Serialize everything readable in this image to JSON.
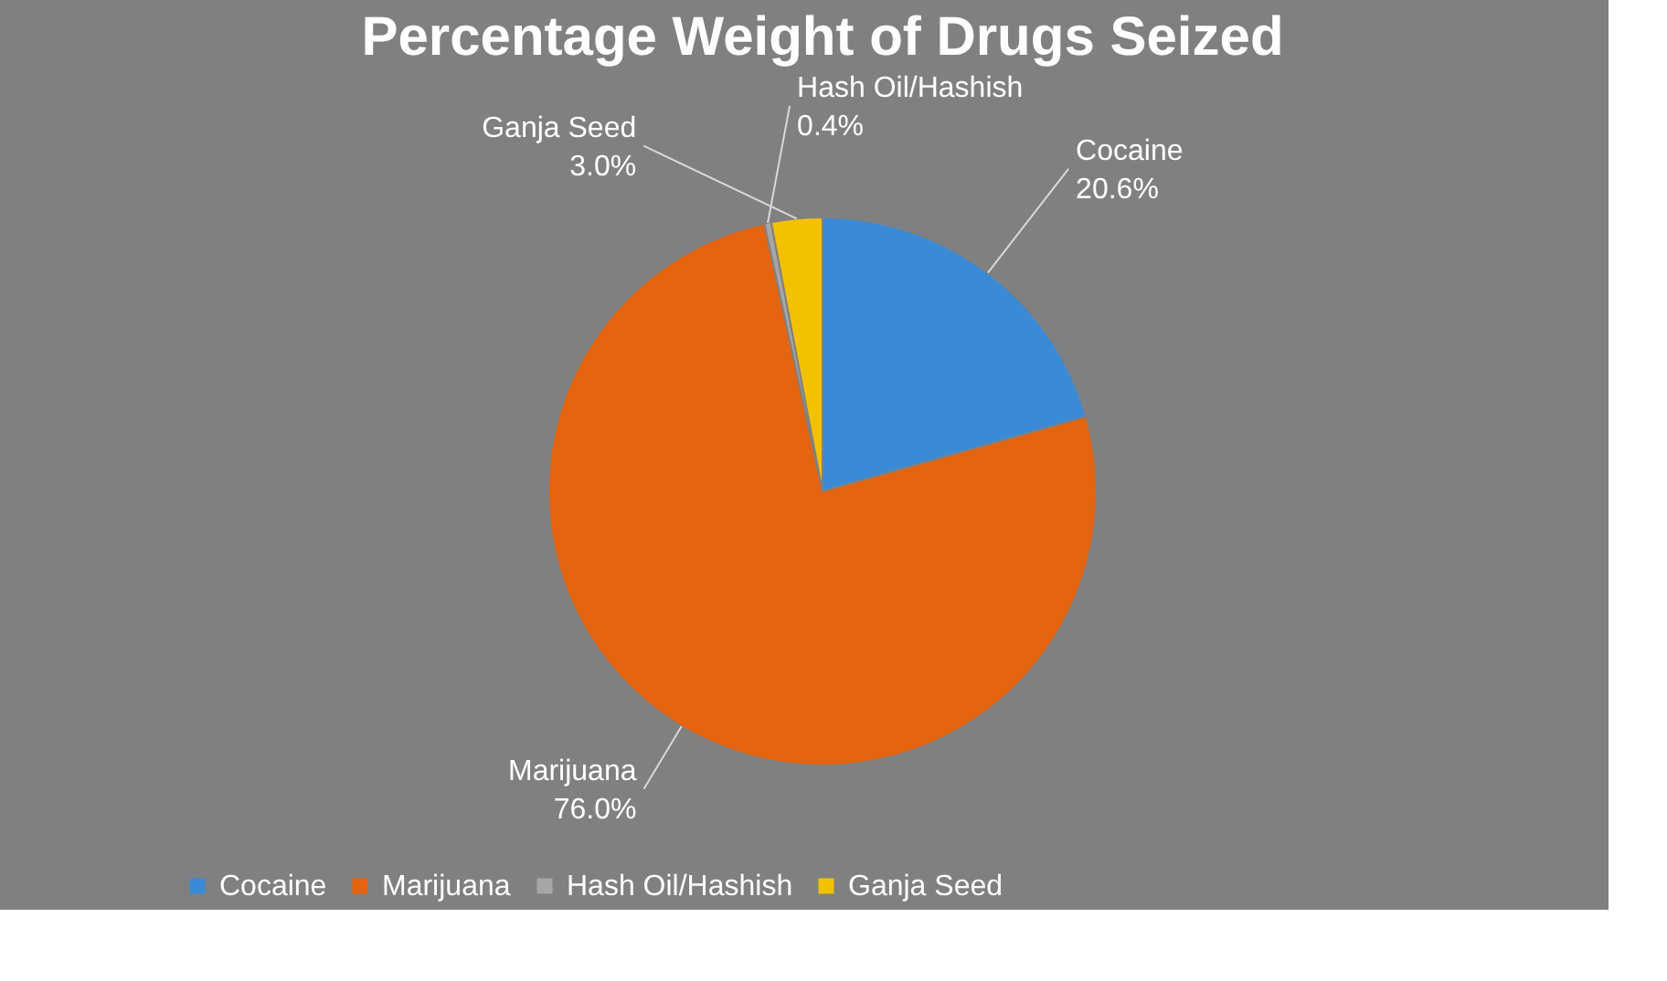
{
  "chart_data": {
    "type": "pie",
    "title": "Percentage Weight of Drugs Seized",
    "categories": [
      "Cocaine",
      "Marijuana",
      "Hash Oil/Hashish",
      "Ganja Seed"
    ],
    "values": [
      20.6,
      76.0,
      0.4,
      3.0
    ],
    "colors": [
      "#3b8ad6",
      "#e5640f",
      "#a6a6a6",
      "#f2c200"
    ],
    "value_labels": [
      "20.6%",
      "76.0%",
      "0.4%",
      "3.0%"
    ],
    "legend": "bottom"
  }
}
